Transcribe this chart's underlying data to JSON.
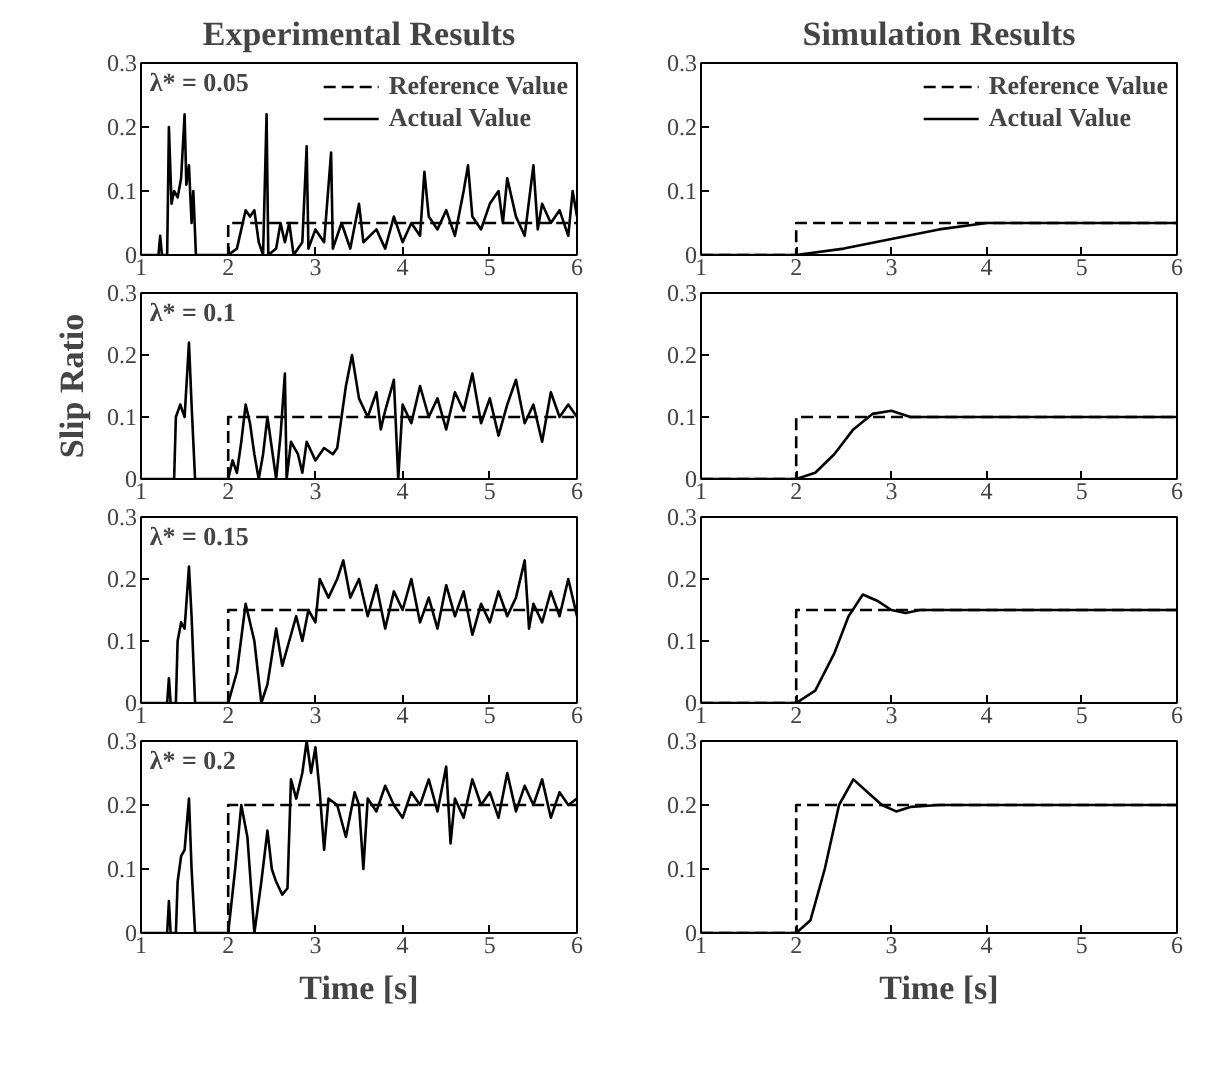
{
  "chart_data": [
    {
      "type": "line",
      "title": "Experimental Results",
      "annotations": [
        "λ* = 0.05"
      ],
      "xlim": [
        1,
        6
      ],
      "ylim": [
        0,
        0.3
      ],
      "xticks": [
        1,
        2,
        3,
        4,
        5,
        6
      ],
      "yticks": [
        0,
        0.1,
        0.2,
        0.3
      ],
      "legend": "top right",
      "series": [
        {
          "name": "Reference Value",
          "color": "#000000",
          "line_style": "dashed",
          "x": [
            2,
            2,
            6
          ],
          "values": [
            0,
            0.05,
            0.05
          ]
        },
        {
          "name": "Actual Value",
          "color": "#000000",
          "line_style": "solid",
          "x": [
            1,
            1.2,
            1.22,
            1.24,
            1.3,
            1.32,
            1.35,
            1.38,
            1.42,
            1.46,
            1.5,
            1.52,
            1.55,
            1.58,
            1.6,
            1.63,
            2.0,
            2.1,
            2.15,
            2.2,
            2.25,
            2.3,
            2.35,
            2.4,
            2.44,
            2.46,
            2.55,
            2.6,
            2.65,
            2.7,
            2.75,
            2.85,
            2.9,
            2.92,
            3.0,
            3.1,
            3.18,
            3.2,
            3.3,
            3.4,
            3.5,
            3.55,
            3.7,
            3.8,
            3.9,
            4.0,
            4.1,
            4.2,
            4.25,
            4.3,
            4.4,
            4.5,
            4.6,
            4.7,
            4.75,
            4.8,
            4.9,
            5.0,
            5.1,
            5.15,
            5.2,
            5.3,
            5.4,
            5.5,
            5.55,
            5.6,
            5.7,
            5.8,
            5.9,
            5.95,
            6
          ],
          "values": [
            0,
            0,
            0.03,
            0,
            0,
            0.2,
            0.08,
            0.1,
            0.09,
            0.12,
            0.22,
            0.11,
            0.14,
            0.05,
            0.1,
            0,
            0,
            0.01,
            0.04,
            0.07,
            0.06,
            0.07,
            0.02,
            0,
            0.22,
            0,
            0.01,
            0.05,
            0.02,
            0.05,
            0,
            0.02,
            0.17,
            0.01,
            0.04,
            0.02,
            0.16,
            0.01,
            0.05,
            0.01,
            0.08,
            0.02,
            0.04,
            0.01,
            0.06,
            0.02,
            0.05,
            0.03,
            0.13,
            0.06,
            0.04,
            0.07,
            0.03,
            0.1,
            0.14,
            0.06,
            0.04,
            0.08,
            0.1,
            0.05,
            0.12,
            0.06,
            0.03,
            0.14,
            0.04,
            0.08,
            0.05,
            0.07,
            0.03,
            0.1,
            0.06
          ]
        }
      ]
    },
    {
      "type": "line",
      "title": "Simulation Results",
      "xlim": [
        1,
        6
      ],
      "ylim": [
        0,
        0.3
      ],
      "xticks": [
        1,
        2,
        3,
        4,
        5,
        6
      ],
      "yticks": [
        0,
        0.1,
        0.2,
        0.3
      ],
      "legend": "top right",
      "series": [
        {
          "name": "Reference Value",
          "color": "#000000",
          "line_style": "dashed",
          "x": [
            1,
            2,
            2,
            6
          ],
          "values": [
            0,
            0,
            0.05,
            0.05
          ]
        },
        {
          "name": "Actual Value",
          "color": "#000000",
          "line_style": "solid",
          "x": [
            1,
            2,
            2.5,
            3,
            3.5,
            4,
            4.5,
            5,
            6
          ],
          "values": [
            0,
            0,
            0.01,
            0.025,
            0.04,
            0.05,
            0.05,
            0.05,
            0.05
          ]
        }
      ]
    },
    {
      "type": "line",
      "ylabel": "Slip Ratio",
      "annotations": [
        "λ* = 0.1"
      ],
      "xlim": [
        1,
        6
      ],
      "ylim": [
        0,
        0.3
      ],
      "xticks": [
        1,
        2,
        3,
        4,
        5,
        6
      ],
      "yticks": [
        0,
        0.1,
        0.2,
        0.3
      ],
      "series": [
        {
          "color": "#000000",
          "line_style": "dashed",
          "x": [
            2,
            2,
            6
          ],
          "values": [
            0,
            0.1,
            0.1
          ]
        },
        {
          "color": "#000000",
          "line_style": "solid",
          "x": [
            1,
            1.38,
            1.4,
            1.45,
            1.5,
            1.55,
            1.58,
            1.62,
            2.0,
            2.05,
            2.1,
            2.15,
            2.2,
            2.25,
            2.3,
            2.35,
            2.4,
            2.45,
            2.5,
            2.55,
            2.6,
            2.65,
            2.67,
            2.72,
            2.8,
            2.85,
            2.9,
            3.0,
            3.1,
            3.2,
            3.25,
            3.3,
            3.35,
            3.42,
            3.5,
            3.6,
            3.7,
            3.75,
            3.8,
            3.9,
            3.95,
            4.0,
            4.1,
            4.2,
            4.3,
            4.4,
            4.5,
            4.6,
            4.7,
            4.8,
            4.9,
            5.0,
            5.1,
            5.2,
            5.3,
            5.4,
            5.5,
            5.6,
            5.7,
            5.8,
            5.9,
            6
          ],
          "values": [
            0,
            0,
            0.1,
            0.12,
            0.1,
            0.22,
            0.12,
            0,
            0,
            0.03,
            0.01,
            0.06,
            0.12,
            0.09,
            0.04,
            0,
            0.04,
            0.1,
            0.05,
            0,
            0.07,
            0.17,
            0,
            0.06,
            0.04,
            0.01,
            0.06,
            0.03,
            0.05,
            0.04,
            0.05,
            0.1,
            0.15,
            0.2,
            0.13,
            0.1,
            0.14,
            0.08,
            0.11,
            0.16,
            0,
            0.12,
            0.09,
            0.15,
            0.1,
            0.13,
            0.08,
            0.14,
            0.11,
            0.17,
            0.09,
            0.13,
            0.07,
            0.12,
            0.16,
            0.09,
            0.12,
            0.06,
            0.14,
            0.1,
            0.12,
            0.1
          ]
        }
      ]
    },
    {
      "type": "line",
      "xlim": [
        1,
        6
      ],
      "ylim": [
        0,
        0.3
      ],
      "xticks": [
        1,
        2,
        3,
        4,
        5,
        6
      ],
      "yticks": [
        0,
        0.1,
        0.2,
        0.3
      ],
      "series": [
        {
          "color": "#000000",
          "line_style": "dashed",
          "x": [
            1,
            2,
            2,
            6
          ],
          "values": [
            0,
            0,
            0.1,
            0.1
          ]
        },
        {
          "color": "#000000",
          "line_style": "solid",
          "x": [
            1,
            2,
            2.2,
            2.4,
            2.6,
            2.8,
            3.0,
            3.2,
            3.4,
            4,
            6
          ],
          "values": [
            0,
            0,
            0.01,
            0.04,
            0.08,
            0.105,
            0.11,
            0.1,
            0.1,
            0.1,
            0.1
          ]
        }
      ]
    },
    {
      "type": "line",
      "annotations": [
        "λ* = 0.15"
      ],
      "xlim": [
        1,
        6
      ],
      "ylim": [
        0,
        0.3
      ],
      "xticks": [
        1,
        2,
        3,
        4,
        5,
        6
      ],
      "yticks": [
        0,
        0.1,
        0.2,
        0.3
      ],
      "series": [
        {
          "color": "#000000",
          "line_style": "dashed",
          "x": [
            2,
            2,
            6
          ],
          "values": [
            0,
            0.15,
            0.15
          ]
        },
        {
          "color": "#000000",
          "line_style": "solid",
          "x": [
            1,
            1.3,
            1.32,
            1.34,
            1.4,
            1.42,
            1.46,
            1.5,
            1.55,
            1.58,
            1.62,
            2.0,
            2.1,
            2.2,
            2.3,
            2.38,
            2.45,
            2.55,
            2.62,
            2.7,
            2.78,
            2.85,
            2.92,
            3.0,
            3.05,
            3.15,
            3.25,
            3.32,
            3.4,
            3.5,
            3.6,
            3.7,
            3.8,
            3.9,
            4.0,
            4.1,
            4.2,
            4.3,
            4.4,
            4.5,
            4.6,
            4.7,
            4.8,
            4.9,
            5.0,
            5.1,
            5.2,
            5.3,
            5.4,
            5.45,
            5.5,
            5.6,
            5.7,
            5.8,
            5.9,
            6
          ],
          "values": [
            0,
            0,
            0.04,
            0,
            0,
            0.1,
            0.13,
            0.12,
            0.22,
            0.14,
            0,
            0,
            0.05,
            0.16,
            0.1,
            0,
            0.03,
            0.12,
            0.06,
            0.1,
            0.14,
            0.1,
            0.15,
            0.13,
            0.2,
            0.17,
            0.2,
            0.23,
            0.17,
            0.2,
            0.14,
            0.19,
            0.12,
            0.18,
            0.15,
            0.2,
            0.13,
            0.17,
            0.12,
            0.19,
            0.14,
            0.18,
            0.11,
            0.16,
            0.13,
            0.18,
            0.14,
            0.17,
            0.23,
            0.12,
            0.16,
            0.13,
            0.18,
            0.14,
            0.2,
            0.14
          ]
        }
      ]
    },
    {
      "type": "line",
      "xlim": [
        1,
        6
      ],
      "ylim": [
        0,
        0.3
      ],
      "xticks": [
        1,
        2,
        3,
        4,
        5,
        6
      ],
      "yticks": [
        0,
        0.1,
        0.2,
        0.3
      ],
      "series": [
        {
          "color": "#000000",
          "line_style": "dashed",
          "x": [
            1,
            2,
            2,
            6
          ],
          "values": [
            0,
            0,
            0.15,
            0.15
          ]
        },
        {
          "color": "#000000",
          "line_style": "solid",
          "x": [
            1,
            2,
            2.2,
            2.4,
            2.55,
            2.7,
            2.85,
            3.0,
            3.15,
            3.3,
            4,
            6
          ],
          "values": [
            0,
            0,
            0.02,
            0.08,
            0.14,
            0.175,
            0.165,
            0.15,
            0.145,
            0.15,
            0.15,
            0.15
          ]
        }
      ]
    },
    {
      "type": "line",
      "xlabel": "Time [s]",
      "annotations": [
        "λ* = 0.2"
      ],
      "xlim": [
        1,
        6
      ],
      "ylim": [
        0,
        0.3
      ],
      "xticks": [
        1,
        2,
        3,
        4,
        5,
        6
      ],
      "yticks": [
        0,
        0.1,
        0.2,
        0.3
      ],
      "series": [
        {
          "color": "#000000",
          "line_style": "dashed",
          "x": [
            2,
            2,
            6
          ],
          "values": [
            0,
            0.2,
            0.2
          ]
        },
        {
          "color": "#000000",
          "line_style": "solid",
          "x": [
            1,
            1.3,
            1.32,
            1.34,
            1.4,
            1.42,
            1.46,
            1.5,
            1.55,
            1.58,
            1.62,
            2.0,
            2.08,
            2.15,
            2.22,
            2.3,
            2.38,
            2.45,
            2.5,
            2.55,
            2.62,
            2.68,
            2.72,
            2.78,
            2.85,
            2.9,
            2.95,
            3.0,
            3.05,
            3.1,
            3.15,
            3.25,
            3.35,
            3.45,
            3.5,
            3.55,
            3.6,
            3.7,
            3.8,
            3.9,
            4.0,
            4.1,
            4.2,
            4.3,
            4.4,
            4.5,
            4.55,
            4.6,
            4.7,
            4.8,
            4.9,
            5.0,
            5.1,
            5.2,
            5.3,
            5.4,
            5.5,
            5.6,
            5.7,
            5.8,
            5.9,
            6
          ],
          "values": [
            0,
            0,
            0.05,
            0,
            0,
            0.08,
            0.12,
            0.13,
            0.21,
            0.1,
            0,
            0,
            0.1,
            0.2,
            0.15,
            0,
            0.08,
            0.16,
            0.1,
            0.08,
            0.06,
            0.07,
            0.24,
            0.21,
            0.25,
            0.3,
            0.25,
            0.29,
            0.22,
            0.13,
            0.21,
            0.2,
            0.15,
            0.22,
            0.2,
            0.1,
            0.21,
            0.19,
            0.23,
            0.2,
            0.18,
            0.22,
            0.2,
            0.24,
            0.19,
            0.26,
            0.14,
            0.21,
            0.18,
            0.24,
            0.2,
            0.22,
            0.18,
            0.25,
            0.19,
            0.23,
            0.2,
            0.24,
            0.18,
            0.22,
            0.2,
            0.21
          ]
        }
      ]
    },
    {
      "type": "line",
      "xlabel": "Time [s]",
      "xlim": [
        1,
        6
      ],
      "ylim": [
        0,
        0.3
      ],
      "xticks": [
        1,
        2,
        3,
        4,
        5,
        6
      ],
      "yticks": [
        0,
        0.1,
        0.2,
        0.3
      ],
      "series": [
        {
          "color": "#000000",
          "line_style": "dashed",
          "x": [
            1,
            2,
            2,
            6
          ],
          "values": [
            0,
            0,
            0.2,
            0.2
          ]
        },
        {
          "color": "#000000",
          "line_style": "solid",
          "x": [
            1,
            2,
            2.15,
            2.3,
            2.45,
            2.6,
            2.75,
            2.9,
            3.05,
            3.2,
            3.5,
            6
          ],
          "values": [
            0,
            0,
            0.02,
            0.1,
            0.2,
            0.24,
            0.22,
            0.2,
            0.19,
            0.197,
            0.2,
            0.2
          ]
        }
      ]
    }
  ]
}
